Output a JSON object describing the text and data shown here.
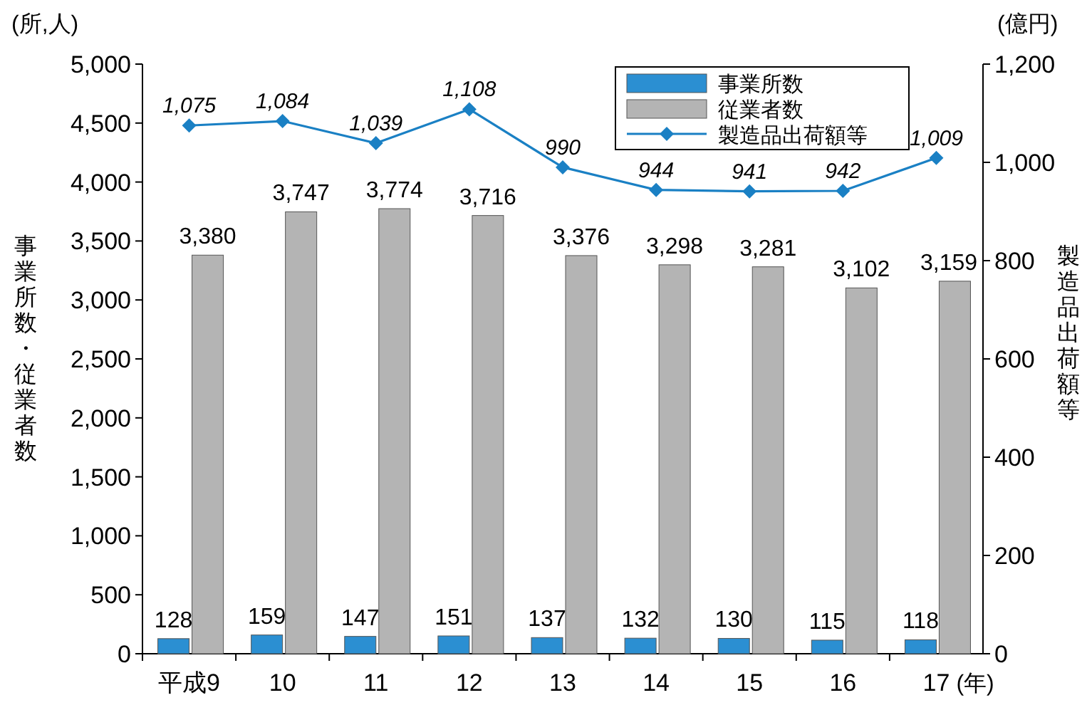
{
  "chart_data": {
    "type": "bar",
    "categories": [
      "平成9",
      "10",
      "11",
      "12",
      "13",
      "14",
      "15",
      "16",
      "17"
    ],
    "xlabel": "(年)",
    "ylabel": "事業所数・従業者数",
    "y2label": "製造品出荷額等",
    "annotations": [
      "(所,人)",
      "(億円)"
    ],
    "series": [
      {
        "name": "事業所数",
        "color": "#2b8fd2",
        "values": [
          128,
          159,
          147,
          151,
          137,
          132,
          130,
          115,
          118
        ],
        "value_labels": [
          "128",
          "159",
          "147",
          "151",
          "137",
          "132",
          "130",
          "115",
          "118"
        ]
      },
      {
        "name": "従業者数",
        "color": "#b4b4b4",
        "values": [
          3380,
          3747,
          3774,
          3716,
          3376,
          3298,
          3281,
          3102,
          3159
        ],
        "value_labels": [
          "3,380",
          "3,747",
          "3,774",
          "3,716",
          "3,376",
          "3,298",
          "3,281",
          "3,102",
          "3,159"
        ]
      },
      {
        "name": "製造品出荷額等",
        "type": "line",
        "axis": "y2",
        "color": "#1a80c4",
        "marker": "diamond",
        "values": [
          1075,
          1084,
          1039,
          1108,
          990,
          944,
          941,
          942,
          1009
        ],
        "value_labels": [
          "1,075",
          "1,084",
          "1,039",
          "1,108",
          "990",
          "944",
          "941",
          "942",
          "1,009"
        ]
      }
    ],
    "ylim": [
      0,
      5000
    ],
    "yticks": [
      0,
      500,
      {
        "value": 1000,
        "label": "1,000"
      },
      {
        "value": 1500,
        "label": "1,500"
      },
      {
        "value": 2000,
        "label": "2,000"
      },
      {
        "value": 2500,
        "label": "2,500"
      },
      {
        "value": 3000,
        "label": "3,000"
      },
      {
        "value": 3500,
        "label": "3,500"
      },
      {
        "value": 4000,
        "label": "4,000"
      },
      {
        "value": 4500,
        "label": "4,500"
      },
      {
        "value": 5000,
        "label": "5,000"
      }
    ],
    "y2lim": [
      0,
      1200
    ],
    "y2ticks": [
      0,
      200,
      400,
      600,
      800,
      {
        "value": 1000,
        "label": "1,000"
      },
      {
        "value": 1200,
        "label": "1,200"
      }
    ],
    "legend": "top right",
    "grid": false
  }
}
